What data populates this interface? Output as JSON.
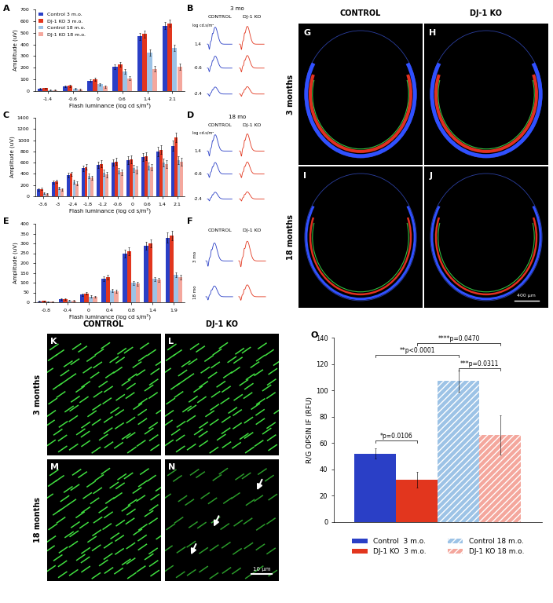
{
  "chart_data": [
    {
      "panel": "A",
      "type": "bar",
      "x_label": "Flash luminance (log cd s/m²)",
      "y_label": "Amplitude (uV)",
      "categories": [
        "-1.4",
        "-0.6",
        "0",
        "0.6",
        "1.4",
        "2.1"
      ],
      "ylim": [
        0,
        700
      ],
      "yticks": [
        0,
        100,
        200,
        300,
        400,
        500,
        600,
        700
      ],
      "legend": "upper left",
      "series": [
        {
          "name": "Control 3 m.o.",
          "color": "#2a3fc6",
          "values": [
            20,
            40,
            90,
            210,
            470,
            560
          ],
          "errors": [
            5,
            8,
            12,
            20,
            30,
            30
          ]
        },
        {
          "name": "DJ-1 KO 3 m.o.",
          "color": "#e2361e",
          "values": [
            25,
            45,
            100,
            230,
            490,
            580
          ],
          "errors": [
            5,
            8,
            12,
            20,
            30,
            30
          ]
        },
        {
          "name": "Control 18 m.o.",
          "color": "#9dc3e6",
          "values": [
            10,
            20,
            60,
            170,
            330,
            370
          ],
          "errors": [
            4,
            6,
            10,
            20,
            30,
            30
          ]
        },
        {
          "name": "DJ-1 KO 18 m.o.",
          "color": "#f4a79d",
          "values": [
            8,
            15,
            40,
            110,
            190,
            210
          ],
          "errors": [
            4,
            6,
            10,
            15,
            25,
            25
          ]
        }
      ]
    },
    {
      "panel": "C",
      "type": "bar",
      "x_label": "Flash luminance (log cd s/m²)",
      "y_label": "Amplitude (uV)",
      "categories": [
        "-3.6",
        "-3",
        "-2.4",
        "-1.8",
        "-1.2",
        "-0.6",
        "0",
        "0.6",
        "1.4",
        "2.1"
      ],
      "ylim": [
        0,
        1400
      ],
      "yticks": [
        0,
        200,
        400,
        600,
        800,
        1000,
        1200,
        1400
      ],
      "series": [
        {
          "name": "Control 3 m.o.",
          "color": "#2a3fc6",
          "values": [
            120,
            250,
            380,
            500,
            560,
            600,
            640,
            700,
            800,
            900
          ],
          "errors": [
            20,
            30,
            40,
            50,
            60,
            60,
            70,
            70,
            80,
            90
          ]
        },
        {
          "name": "DJ-1 KO 3 m.o.",
          "color": "#e2361e",
          "values": [
            130,
            270,
            400,
            520,
            580,
            620,
            660,
            720,
            830,
            1050
          ],
          "errors": [
            20,
            30,
            40,
            50,
            60,
            60,
            70,
            70,
            80,
            90
          ]
        },
        {
          "name": "Control 18 m.o.",
          "color": "#9dc3e6",
          "values": [
            60,
            150,
            260,
            360,
            420,
            460,
            500,
            540,
            600,
            650
          ],
          "errors": [
            15,
            25,
            30,
            40,
            50,
            50,
            60,
            60,
            70,
            70
          ]
        },
        {
          "name": "DJ-1 KO 18 m.o.",
          "color": "#f4a79d",
          "values": [
            40,
            120,
            230,
            330,
            390,
            430,
            470,
            520,
            580,
            620
          ],
          "errors": [
            15,
            25,
            30,
            40,
            50,
            50,
            60,
            60,
            70,
            70
          ]
        }
      ]
    },
    {
      "panel": "E",
      "type": "bar",
      "x_label": "Flash luminance (log cd s/m²)",
      "y_label": "Amplitude (uV)",
      "categories": [
        "-0.8",
        "-0.4",
        "0",
        "0.4",
        "0.8",
        "1.4",
        "1.9"
      ],
      "ylim": [
        0,
        400
      ],
      "yticks": [
        0,
        50,
        100,
        150,
        200,
        250,
        300,
        350,
        400
      ],
      "series": [
        {
          "name": "Control 3 m.o.",
          "color": "#2a3fc6",
          "values": [
            5,
            15,
            40,
            120,
            250,
            290,
            330
          ],
          "errors": [
            2,
            4,
            6,
            12,
            20,
            20,
            25
          ]
        },
        {
          "name": "DJ-1 KO 3 m.o.",
          "color": "#e2361e",
          "values": [
            8,
            18,
            45,
            130,
            260,
            300,
            340
          ],
          "errors": [
            2,
            4,
            6,
            12,
            20,
            20,
            25
          ]
        },
        {
          "name": "Control 18 m.o.",
          "color": "#9dc3e6",
          "values": [
            3,
            10,
            30,
            60,
            100,
            120,
            140
          ],
          "errors": [
            2,
            3,
            5,
            8,
            10,
            10,
            12
          ]
        },
        {
          "name": "DJ-1 KO 18 m.o.",
          "color": "#f4a79d",
          "values": [
            3,
            8,
            28,
            55,
            95,
            115,
            130
          ],
          "errors": [
            2,
            3,
            5,
            8,
            10,
            10,
            12
          ]
        }
      ]
    },
    {
      "panel": "O",
      "type": "bar",
      "y_label": "R/G OPSIN IF (RFU)",
      "categories": [
        null
      ],
      "ylim": [
        0,
        140
      ],
      "yticks": [
        0,
        20,
        40,
        60,
        80,
        100,
        120,
        140
      ],
      "legend": "upper center",
      "series": [
        {
          "name": "Control  3 m.o.",
          "color": "#2a3fc6",
          "values": [
            52
          ],
          "errors": [
            4
          ]
        },
        {
          "name": "DJ-1 KO  3 m.o.",
          "color": "#e2361e",
          "values": [
            32
          ],
          "errors": [
            6
          ]
        },
        {
          "name": "Control 18 m.o.",
          "color": "#9dc3e6",
          "values": [
            107
          ],
          "errors": [
            8
          ]
        },
        {
          "name": "DJ-1 KO 18 m.o.",
          "color": "#f4a79d",
          "values": [
            66
          ],
          "errors": [
            15
          ]
        }
      ],
      "annotations": [
        {
          "text": "*p=0.0106",
          "between": [
            0,
            1
          ],
          "y": 62
        },
        {
          "text": "**p<0.0001",
          "between": [
            0,
            2
          ],
          "y": 127
        },
        {
          "text": "****p=0.0470",
          "between": [
            1,
            3
          ],
          "y": 136
        },
        {
          "text": "***p=0.0311",
          "between": [
            2,
            3
          ],
          "y": 117
        }
      ]
    }
  ],
  "traces": [
    {
      "panel": "B",
      "title": "3 mo",
      "columns": [
        "CONTROL",
        "DJ-1 KO"
      ],
      "unit": "log cd.s/m²",
      "levels": [
        "1.4",
        "-0.6",
        "-2.4"
      ]
    },
    {
      "panel": "D",
      "title": "18 mo",
      "columns": [
        "CONTROL",
        "DJ-1 KO"
      ],
      "unit": "log cd.s/m²",
      "levels": [
        "1.4",
        "-0.6",
        "-2.4"
      ]
    },
    {
      "panel": "F",
      "columns": [
        "CONTROL",
        "DJ-1 KO"
      ],
      "rows": [
        "3 mo",
        "18 mo"
      ]
    }
  ],
  "images": [
    {
      "panels": [
        "G",
        "H",
        "I",
        "J"
      ],
      "columns": [
        "CONTROL",
        "DJ-1 KO"
      ],
      "rows": [
        "3 months",
        "18 months"
      ],
      "scale_bar": "400 µm"
    },
    {
      "panels": [
        "K",
        "L",
        "M",
        "N"
      ],
      "columns": [
        "CONTROL",
        "DJ-1 KO"
      ],
      "rows": [
        "3 months",
        "18 months"
      ],
      "scale_bar": "10 µm"
    }
  ]
}
